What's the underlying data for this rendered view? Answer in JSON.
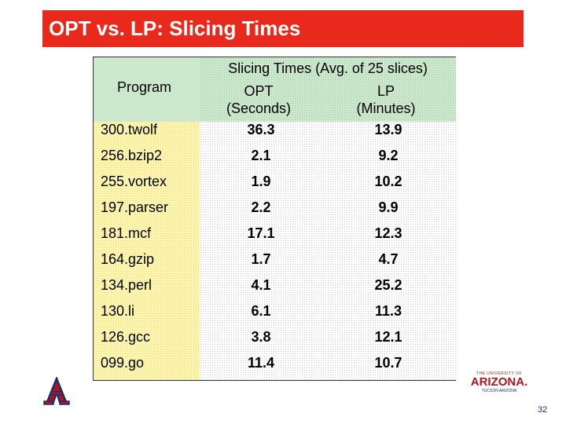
{
  "title": "OPT vs. LP: Slicing Times",
  "table": {
    "program_header": "Program",
    "span_header": "Slicing Times (Avg. of 25 slices)",
    "opt_header_line1": "OPT",
    "opt_header_line2": "(Seconds)",
    "lp_header_line1": "LP",
    "lp_header_line2": "(Minutes)",
    "rows": [
      {
        "program": "300.twolf",
        "opt": "36.3",
        "lp": "13.9"
      },
      {
        "program": "256.bzip2",
        "opt": "2.1",
        "lp": "9.2"
      },
      {
        "program": "255.vortex",
        "opt": "1.9",
        "lp": "10.2"
      },
      {
        "program": "197.parser",
        "opt": "2.2",
        "lp": "9.9"
      },
      {
        "program": "181.mcf",
        "opt": "17.1",
        "lp": "12.3"
      },
      {
        "program": "164.gzip",
        "opt": "1.7",
        "lp": "4.7"
      },
      {
        "program": "134.perl",
        "opt": "4.1",
        "lp": "25.2"
      },
      {
        "program": "130.li",
        "opt": "6.1",
        "lp": "11.3"
      },
      {
        "program": "126.gcc",
        "opt": "3.8",
        "lp": "12.1"
      },
      {
        "program": "099.go",
        "opt": "11.4",
        "lp": "10.7"
      }
    ]
  },
  "logo_right": {
    "line1": "THE UNIVERSITY OF",
    "line2": "ARIZONA.",
    "line3": "TUCSON ARIZONA"
  },
  "page_number": "32",
  "colors": {
    "title_bar": "#e8291c",
    "header_bg": "#cce8cc",
    "program_col_bg": "#fdf5b0",
    "arizona_red": "#b0151c",
    "arizona_blue": "#1a2e6e"
  }
}
